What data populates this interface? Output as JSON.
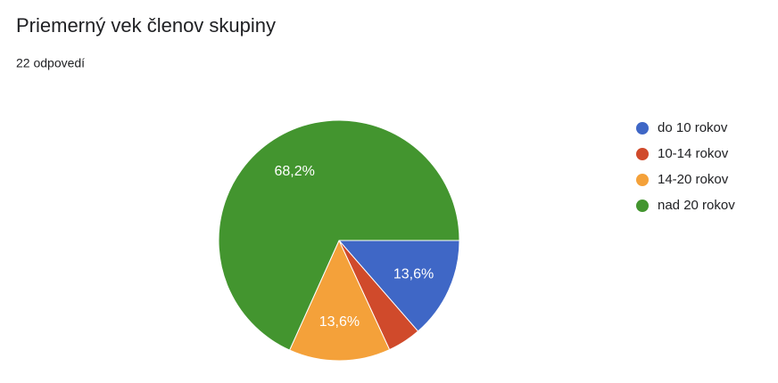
{
  "chart_data": {
    "type": "pie",
    "title": "Priemerný vek členov skupiny",
    "subtitle": "22 odpovedí",
    "categories": [
      "do 10 rokov",
      "10-14 rokov",
      "14-20 rokov",
      "nad 20 rokov"
    ],
    "values": [
      13.6,
      4.5,
      13.6,
      68.2
    ],
    "value_labels": [
      "13,6%",
      null,
      "13,6%",
      "68,2%"
    ],
    "colors": [
      "#3f67c6",
      "#d04a2b",
      "#f4a13a",
      "#43952f"
    ],
    "legend": "right"
  }
}
